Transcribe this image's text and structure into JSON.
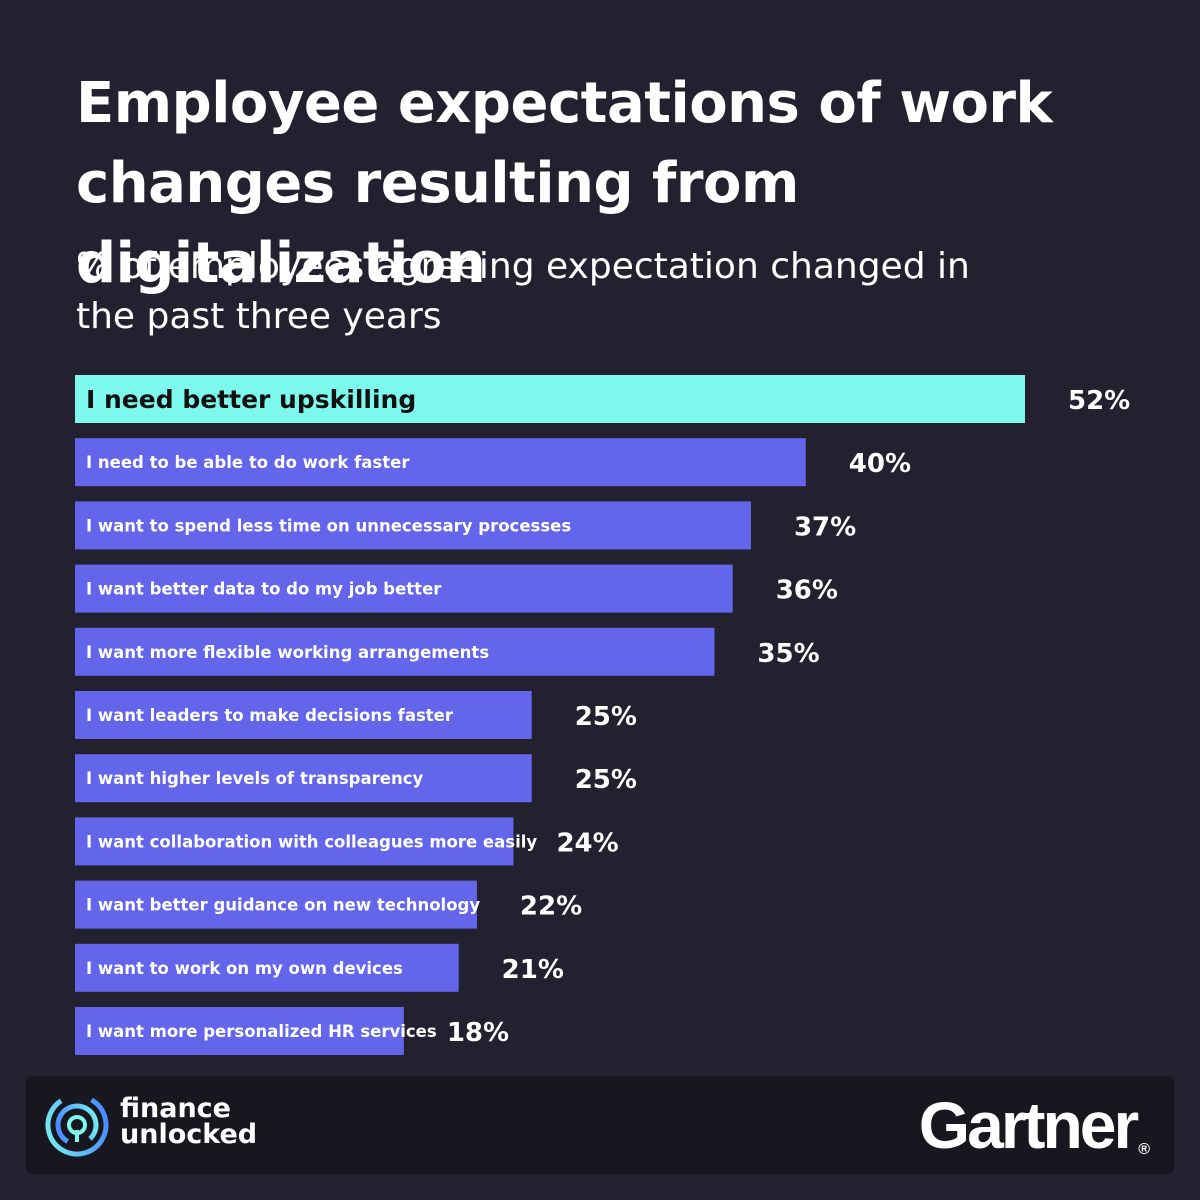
{
  "title": "Employee expectations of work changes resulting from digitalization",
  "subtitle": "% of employees agreeing expectation changed in the past three years",
  "footer": {
    "brand_line1": "finance",
    "brand_line2": "unlocked",
    "partner": "Gartner",
    "partner_mark": "®"
  },
  "colors": {
    "background": "#23212f",
    "highlight_bar": "#7cf8ec",
    "bar": "#6366ea",
    "footer_bg": "#18171f"
  },
  "chart_data": {
    "type": "bar",
    "orientation": "horizontal",
    "title": "Employee expectations of work changes resulting from digitalization",
    "subtitle": "% of employees agreeing expectation changed in the past three years",
    "xlabel": "",
    "ylabel": "",
    "xlim": [
      0,
      52
    ],
    "unit": "%",
    "grid": false,
    "categories": [
      "I need better upskilling",
      "I need to be able to do work faster",
      "I want to spend less time on unnecessary processes",
      "I want better data to do my job better",
      "I want more flexible working arrangements",
      "I want leaders to make decisions faster",
      "I want higher levels of transparency",
      "I want collaboration with colleagues more easily",
      "I want better guidance on new technology",
      "I want to work on my own devices",
      "I want more personalized HR services"
    ],
    "values": [
      52,
      40,
      37,
      36,
      35,
      25,
      25,
      24,
      22,
      21,
      18
    ],
    "labels": [
      "52%",
      "40%",
      "37%",
      "36%",
      "35%",
      "25%",
      "25%",
      "24%",
      "22%",
      "21%",
      "18%"
    ],
    "highlight_index": 0
  }
}
